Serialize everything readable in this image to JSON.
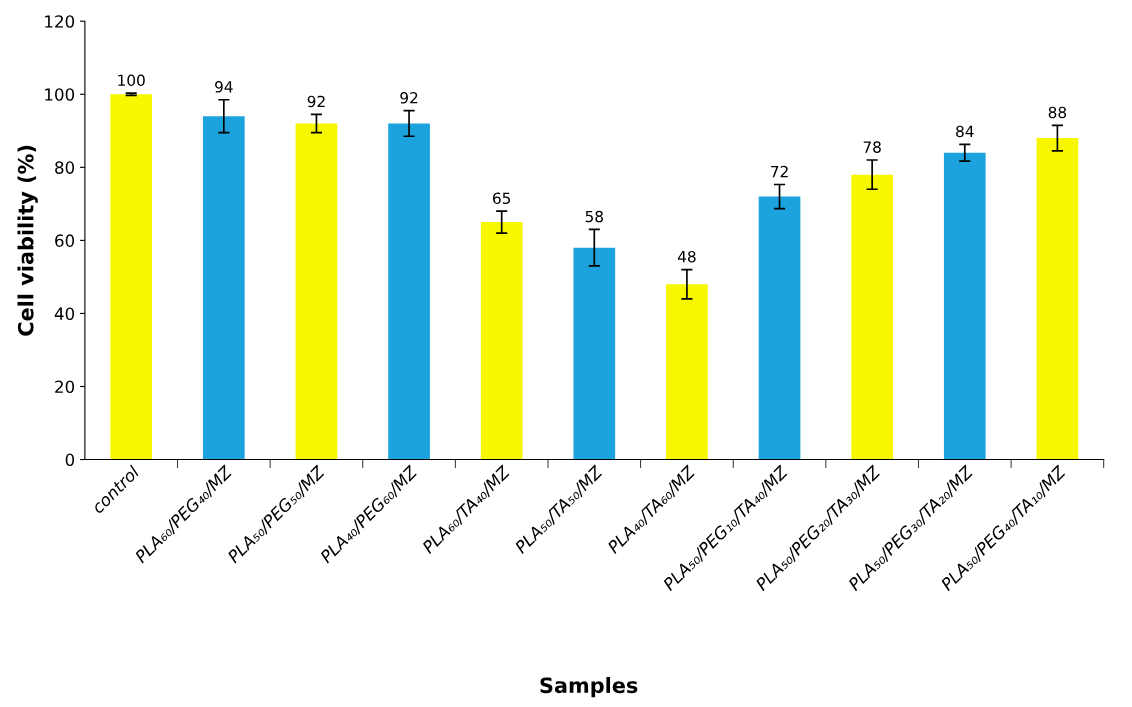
{
  "chart_data": {
    "type": "bar",
    "xlabel": "Samples",
    "ylabel": "Cell viability (%)",
    "categories": [
      "control",
      "PLA₆₀/PEG₄₀/MZ",
      "PLA₅₀/PEG₅₀/MZ",
      "PLA₄₀/PEG₆₀/MZ",
      "PLA₆₀/TA₄₀/MZ",
      "PLA₅₀/TA₅₀/MZ",
      "PLA₄₀/TA₆₀/MZ",
      "PLA₅₀/PEG₁₀/TA₄₀/MZ",
      "PLA₅₀/PEG₂₀/TA₃₀/MZ",
      "PLA₅₀/PEG₃₀/TA₂₀/MZ",
      "PLA₅₀/PEG₄₀/TA₁₀/MZ"
    ],
    "values": [
      100,
      94,
      92,
      92,
      65,
      58,
      48,
      72,
      78,
      84,
      88
    ],
    "errors": [
      0.3,
      4.5,
      2.5,
      3.5,
      3,
      5,
      4,
      3.3,
      4,
      2.3,
      3.5
    ],
    "colors": [
      "#f7f700",
      "#1ca3de",
      "#f7f700",
      "#1ca3de",
      "#f7f700",
      "#1ca3de",
      "#f7f700",
      "#1ca3de",
      "#f7f700",
      "#1ca3de",
      "#f7f700"
    ],
    "data_labels": true,
    "ylim": [
      0,
      120
    ],
    "yticks": [
      0,
      20,
      40,
      60,
      80,
      100,
      120
    ],
    "grid": false,
    "legend": false
  }
}
